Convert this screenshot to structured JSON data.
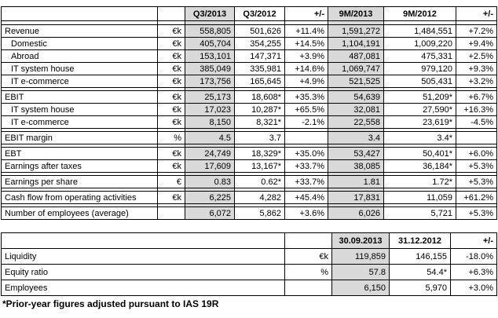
{
  "colors": {
    "shaded_column_bg": "#d9d9d9",
    "border": "#000000",
    "page_bg": "#ffffff"
  },
  "quarterly_table": {
    "headers": [
      "Q3/2013",
      "Q3/2012",
      "+/-",
      "9M/2013",
      "9M/2012",
      "+/-"
    ],
    "rows": [
      {
        "label": "Revenue",
        "unit": "€k",
        "indent": false,
        "gap_before": false,
        "values": [
          "558,805",
          "501,626",
          "+11.4%",
          "1,591,272",
          "1,484,551",
          "+7.2%"
        ]
      },
      {
        "label": "Domestic",
        "unit": "€k",
        "indent": true,
        "gap_before": false,
        "values": [
          "405,704",
          "354,255",
          "+14.5%",
          "1,104,191",
          "1,009,220",
          "+9.4%"
        ]
      },
      {
        "label": "Abroad",
        "unit": "€k",
        "indent": true,
        "gap_before": false,
        "values": [
          "153,101",
          "147,371",
          "+3.9%",
          "487,081",
          "475,331",
          "+2.5%"
        ]
      },
      {
        "label": "IT system house",
        "unit": "€k",
        "indent": true,
        "gap_before": false,
        "values": [
          "385,049",
          "335,981",
          "+14.6%",
          "1,069,747",
          "979,120",
          "+9.3%"
        ]
      },
      {
        "label": "IT e-commerce",
        "unit": "€k",
        "indent": true,
        "gap_before": false,
        "values": [
          "173,756",
          "165,645",
          "+4.9%",
          "521,525",
          "505,431",
          "+3.2%"
        ]
      },
      {
        "label": "EBIT",
        "unit": "€k",
        "indent": false,
        "gap_before": true,
        "values": [
          "25,173",
          "18,608*",
          "+35.3%",
          "54,639",
          "51,209*",
          "+6.7%"
        ]
      },
      {
        "label": "IT system house",
        "unit": "€k",
        "indent": true,
        "gap_before": false,
        "values": [
          "17,023",
          "10,287*",
          "+65.5%",
          "32,081",
          "27,590*",
          "+16.3%"
        ]
      },
      {
        "label": "IT e-commerce",
        "unit": "€k",
        "indent": true,
        "gap_before": false,
        "values": [
          "8,150",
          "8,321*",
          "-2.1%",
          "22,558",
          "23,619*",
          "-4.5%"
        ]
      },
      {
        "label": "EBIT margin",
        "unit": "%",
        "indent": false,
        "gap_before": true,
        "values": [
          "4.5",
          "3.7",
          "",
          "3.4",
          "3.4*",
          ""
        ]
      },
      {
        "label": "EBT",
        "unit": "€k",
        "indent": false,
        "gap_before": true,
        "values": [
          "24,749",
          "18,329*",
          "+35.0%",
          "53,427",
          "50,401*",
          "+6.0%"
        ]
      },
      {
        "label": "Earnings after taxes",
        "unit": "€k",
        "indent": false,
        "gap_before": false,
        "values": [
          "17,609",
          "13,167*",
          "+33.7%",
          "38,085",
          "36,184*",
          "+5.3%"
        ]
      },
      {
        "label": "Earnings per share",
        "unit": "€",
        "indent": false,
        "gap_before": true,
        "values": [
          "0.83",
          "0.62*",
          "+33.7%",
          "1.81",
          "1.72*",
          "+5.3%"
        ]
      },
      {
        "label": "Cash flow from operating activities",
        "unit": "€k",
        "indent": false,
        "gap_before": true,
        "values": [
          "6,225",
          "4,282",
          "+45.4%",
          "17,831",
          "11,059",
          "+61.2%"
        ]
      },
      {
        "label": "Number of employees (average)",
        "unit": "",
        "indent": false,
        "gap_before": true,
        "values": [
          "6,072",
          "5,862",
          "+3.6%",
          "6,026",
          "5,721",
          "+5.3%"
        ]
      }
    ]
  },
  "balance_table": {
    "headers": [
      "30.09.2013",
      "31.12.2012",
      "+/-"
    ],
    "rows": [
      {
        "label": "Liquidity",
        "unit": "€k",
        "values": [
          "119,859",
          "146,155",
          "-18.0%"
        ]
      },
      {
        "label": "Equity ratio",
        "unit": "%",
        "values": [
          "57.8",
          "54.4*",
          "+6.3%"
        ]
      },
      {
        "label": "Employees",
        "unit": "",
        "values": [
          "6,150",
          "5,970",
          "+3.0%"
        ]
      }
    ]
  },
  "footnote": "*Prior-year figures adjusted pursuant to IAS 19R"
}
